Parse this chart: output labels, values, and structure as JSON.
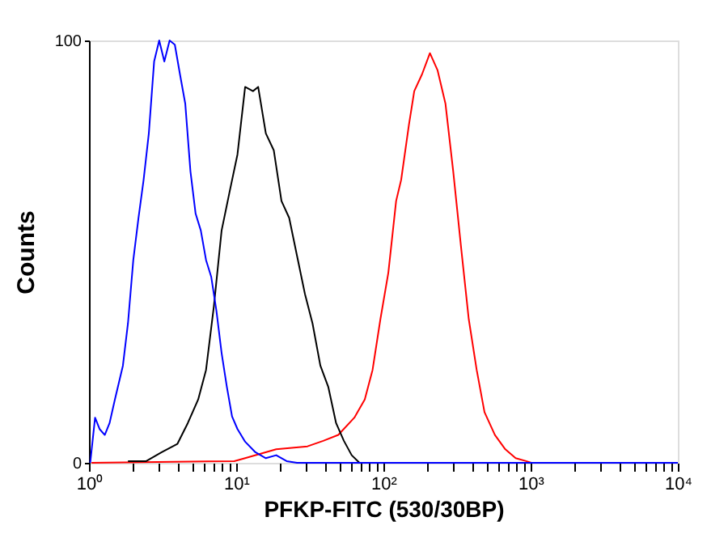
{
  "chart_data": {
    "type": "line",
    "xlabel": "PFKP-FITC (530/30BP)",
    "ylabel": "Counts",
    "log": "x",
    "grid": false,
    "legend": false,
    "marker": "none",
    "line_style": "solid",
    "xlim": [
      1,
      10000
    ],
    "ylim": [
      0,
      100
    ],
    "xticks": [
      {
        "value": 1,
        "label": "10⁰"
      },
      {
        "value": 2,
        "label": null
      },
      {
        "value": 3,
        "label": null
      },
      {
        "value": 4,
        "label": null
      },
      {
        "value": 5,
        "label": null
      },
      {
        "value": 6,
        "label": null
      },
      {
        "value": 7,
        "label": null
      },
      {
        "value": 8,
        "label": null
      },
      {
        "value": 9,
        "label": null
      },
      {
        "value": 10,
        "label": "10¹"
      },
      {
        "value": 20,
        "label": null
      },
      {
        "value": 30,
        "label": null
      },
      {
        "value": 40,
        "label": null
      },
      {
        "value": 50,
        "label": null
      },
      {
        "value": 60,
        "label": null
      },
      {
        "value": 70,
        "label": null
      },
      {
        "value": 80,
        "label": null
      },
      {
        "value": 90,
        "label": null
      },
      {
        "value": 100,
        "label": "10²"
      },
      {
        "value": 200,
        "label": null
      },
      {
        "value": 300,
        "label": null
      },
      {
        "value": 400,
        "label": null
      },
      {
        "value": 500,
        "label": null
      },
      {
        "value": 600,
        "label": null
      },
      {
        "value": 700,
        "label": null
      },
      {
        "value": 800,
        "label": null
      },
      {
        "value": 900,
        "label": null
      },
      {
        "value": 1000,
        "label": "10³"
      },
      {
        "value": 2000,
        "label": null
      },
      {
        "value": 3000,
        "label": null
      },
      {
        "value": 4000,
        "label": null
      },
      {
        "value": 5000,
        "label": null
      },
      {
        "value": 6000,
        "label": null
      },
      {
        "value": 7000,
        "label": null
      },
      {
        "value": 8000,
        "label": null
      },
      {
        "value": 9000,
        "label": null
      },
      {
        "value": 10000,
        "label": "10⁴"
      }
    ],
    "yticks": [
      0,
      100
    ],
    "series": [
      {
        "color": "#ff0000",
        "x": [
          1.04,
          9.7,
          11.5,
          18.7,
          30.5,
          39.0,
          49.4,
          63.5,
          74.7,
          84.4,
          95.4,
          108,
          122,
          132,
          149,
          162,
          183,
          207,
          233,
          264,
          298,
          337,
          380,
          430,
          486,
          572,
          673,
          791,
          932,
          1010
        ],
        "values": [
          0,
          0.4,
          1.1,
          3.2,
          3.9,
          5.2,
          6.6,
          10.7,
          15,
          22,
          34,
          45,
          62,
          67,
          80,
          88,
          92,
          97,
          93,
          85,
          69,
          51,
          34,
          22,
          12,
          6.6,
          3.2,
          1.1,
          0.4,
          0
        ]
      },
      {
        "color": "#000000",
        "x": [
          1.84,
          2.45,
          3.12,
          3.99,
          4.69,
          5.52,
          6.24,
          7.05,
          7.96,
          9.0,
          10.2,
          11.5,
          13.0,
          14.1,
          15.9,
          18.0,
          20.3,
          22.9,
          25.9,
          29.3,
          33.0,
          37.3,
          42.2,
          47.7,
          53.9,
          60.9,
          68.8
        ],
        "values": [
          0.4,
          0.4,
          2.5,
          4.5,
          9.4,
          15,
          22,
          37,
          55,
          64,
          73,
          89,
          88,
          89,
          78,
          74,
          62,
          58,
          49,
          40,
          33,
          23,
          18,
          9.4,
          5.2,
          1.8,
          0
        ]
      },
      {
        "color": "#0000ff",
        "x": [
          1.02,
          1.1,
          1.18,
          1.28,
          1.38,
          1.5,
          1.7,
          1.84,
          2.0,
          2.17,
          2.35,
          2.55,
          2.77,
          3.0,
          3.25,
          3.53,
          3.83,
          4.15,
          4.51,
          4.89,
          5.3,
          5.75,
          6.24,
          6.77,
          7.34,
          7.96,
          8.64,
          9.37,
          10.2,
          11.5,
          13.5,
          15.9,
          18.7,
          22.0,
          25.9,
          10000
        ],
        "values": [
          0,
          10.7,
          8,
          6.6,
          9.4,
          15,
          23,
          33,
          48,
          58,
          67,
          78,
          95,
          100,
          95,
          100,
          99,
          92,
          85,
          69,
          59,
          55,
          48,
          44,
          36,
          26,
          18,
          11,
          8,
          5,
          2.5,
          1.1,
          1.8,
          0.4,
          0,
          0
        ]
      }
    ]
  }
}
